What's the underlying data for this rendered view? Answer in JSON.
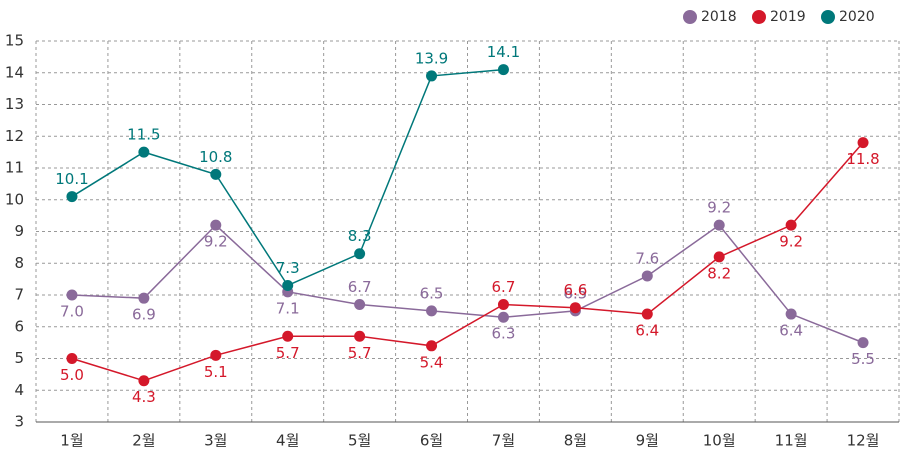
{
  "chart_data": {
    "type": "line",
    "categories": [
      "1월",
      "2월",
      "3월",
      "4월",
      "5월",
      "6월",
      "7월",
      "8월",
      "9월",
      "10월",
      "11월",
      "12월"
    ],
    "series": [
      {
        "name": "2018",
        "color": "#8a6a9a",
        "values": [
          7.0,
          6.9,
          9.2,
          7.1,
          6.7,
          6.5,
          6.3,
          6.5,
          7.6,
          9.2,
          6.4,
          5.5
        ],
        "value_labels": [
          "7.0",
          "6.9",
          "9.2",
          "7.1",
          "6.7",
          "6.5",
          "6.3",
          "6.5",
          "7.6",
          "9.2",
          "6.4",
          "5.5"
        ]
      },
      {
        "name": "2019",
        "color": "#d4182a",
        "values": [
          5.0,
          4.3,
          5.1,
          5.7,
          5.7,
          5.4,
          6.7,
          6.6,
          6.4,
          8.2,
          9.2,
          11.8
        ],
        "value_labels": [
          "5.0",
          "4.3",
          "5.1",
          "5.7",
          "5.7",
          "5.4",
          "6.7",
          "6.6",
          "6.4",
          "8.2",
          "9.2",
          "11.8"
        ]
      },
      {
        "name": "2020",
        "color": "#00787a",
        "values": [
          10.1,
          11.5,
          10.8,
          7.3,
          8.3,
          13.9,
          14.1,
          null,
          null,
          null,
          null,
          null
        ],
        "value_labels": [
          "10.1",
          "11.5",
          "10.8",
          "7.3",
          "8.3",
          "13.9",
          "14.1",
          null,
          null,
          null,
          null,
          null
        ]
      }
    ],
    "ylim": [
      3,
      15
    ],
    "yticks": [
      3,
      4,
      5,
      6,
      7,
      8,
      9,
      10,
      11,
      12,
      13,
      14,
      15
    ],
    "grid": true
  }
}
